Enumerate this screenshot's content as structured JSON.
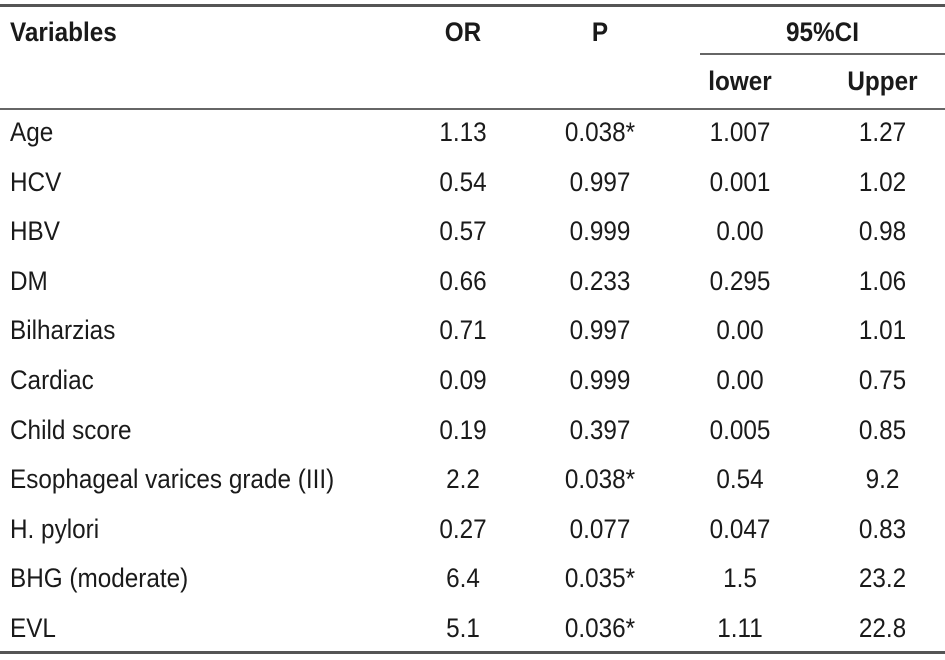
{
  "header": {
    "variables": "Variables",
    "or": "OR",
    "p": "P",
    "ci": "95%CI",
    "lower": "lower",
    "upper": "Upper"
  },
  "rows": [
    {
      "variable": "Age",
      "or": "1.13",
      "p": "0.038*",
      "lower": "1.007",
      "upper": "1.27"
    },
    {
      "variable": "HCV",
      "or": "0.54",
      "p": "0.997",
      "lower": "0.001",
      "upper": "1.02"
    },
    {
      "variable": "HBV",
      "or": "0.57",
      "p": "0.999",
      "lower": "0.00",
      "upper": "0.98"
    },
    {
      "variable": "DM",
      "or": "0.66",
      "p": "0.233",
      "lower": "0.295",
      "upper": "1.06"
    },
    {
      "variable": "Bilharzias",
      "or": "0.71",
      "p": "0.997",
      "lower": "0.00",
      "upper": "1.01"
    },
    {
      "variable": "Cardiac",
      "or": "0.09",
      "p": "0.999",
      "lower": "0.00",
      "upper": "0.75"
    },
    {
      "variable": "Child score",
      "or": "0.19",
      "p": "0.397",
      "lower": "0.005",
      "upper": "0.85"
    },
    {
      "variable": "Esophageal varices grade (III)",
      "or": "2.2",
      "p": "0.038*",
      "lower": "0.54",
      "upper": "9.2"
    },
    {
      "variable": "H. pylori",
      "or": "0.27",
      "p": "0.077",
      "lower": "0.047",
      "upper": "0.83"
    },
    {
      "variable": "BHG (moderate)",
      "or": "6.4",
      "p": "0.035*",
      "lower": "1.5",
      "upper": "23.2"
    },
    {
      "variable": "EVL",
      "or": "5.1",
      "p": "0.036*",
      "lower": "1.11",
      "upper": "22.8"
    }
  ]
}
